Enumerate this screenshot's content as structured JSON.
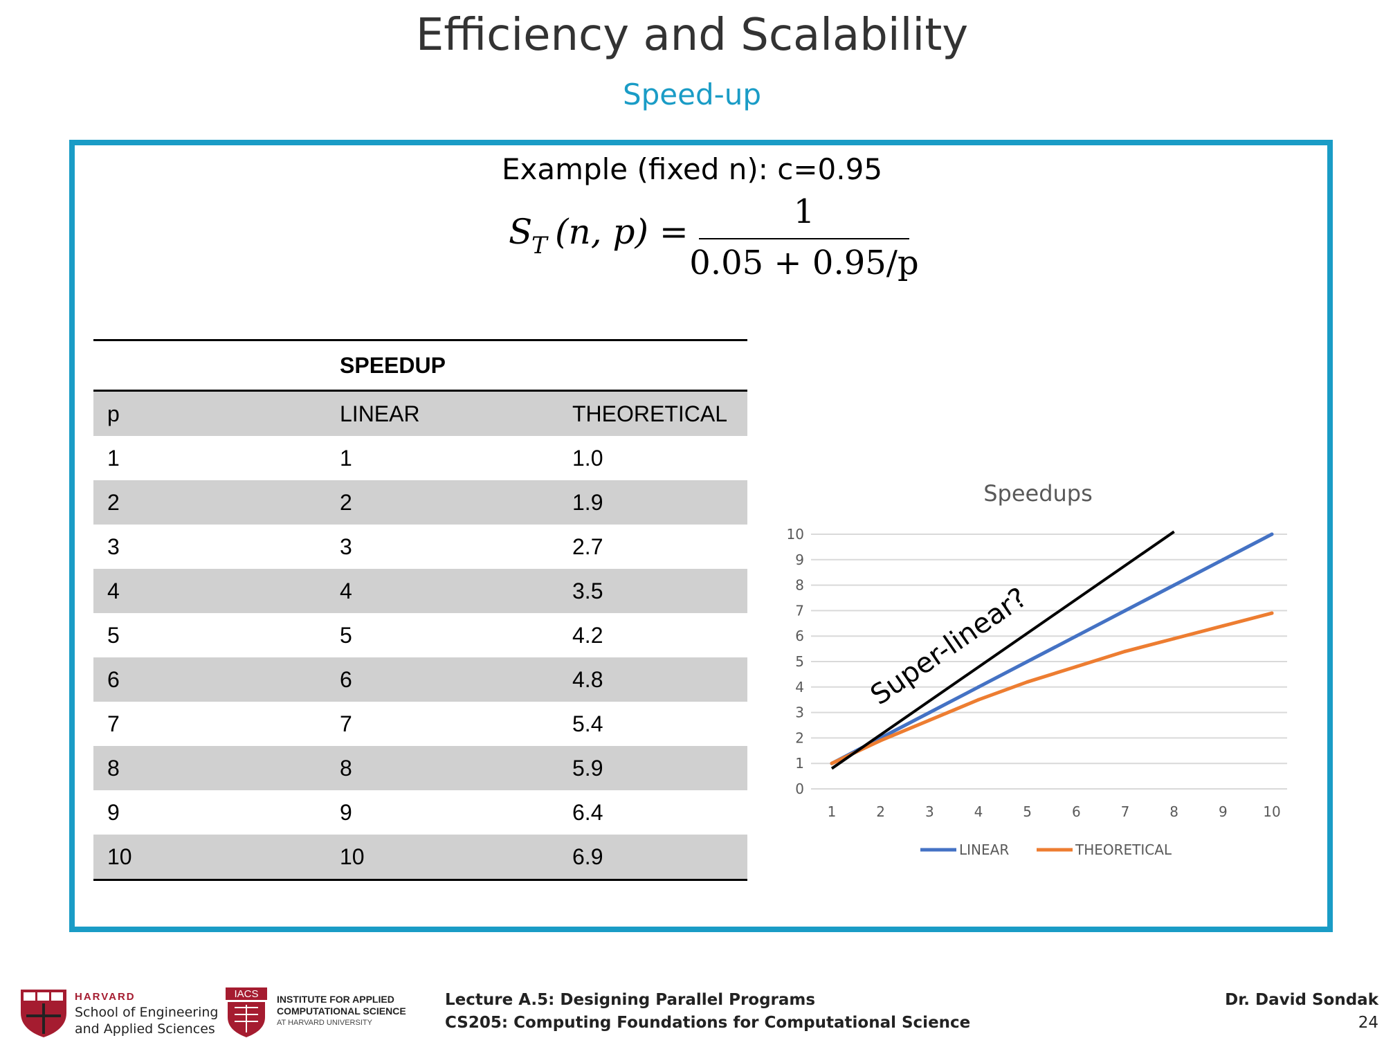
{
  "slide": {
    "title": "Efficiency and Scalability",
    "subtitle": "Speed-up",
    "example_label": "Example (fixed n): c=0.95",
    "formula": {
      "lhs": "S",
      "lhs_sub": "T",
      "lhs_args": "(n, p) =",
      "numerator": "1",
      "denominator": "0.05 + 0.95/p"
    }
  },
  "table": {
    "group_header": "SPEEDUP",
    "columns": [
      "p",
      "LINEAR",
      "THEORETICAL"
    ],
    "rows": [
      [
        "1",
        "1",
        "1.0"
      ],
      [
        "2",
        "2",
        "1.9"
      ],
      [
        "3",
        "3",
        "2.7"
      ],
      [
        "4",
        "4",
        "3.5"
      ],
      [
        "5",
        "5",
        "4.2"
      ],
      [
        "6",
        "6",
        "4.8"
      ],
      [
        "7",
        "7",
        "5.4"
      ],
      [
        "8",
        "8",
        "5.9"
      ],
      [
        "9",
        "9",
        "6.4"
      ],
      [
        "10",
        "10",
        "6.9"
      ]
    ]
  },
  "chart_data": {
    "type": "line",
    "title": "Speedups",
    "xlabel": "",
    "ylabel": "",
    "x": [
      1,
      2,
      3,
      4,
      5,
      6,
      7,
      8,
      9,
      10
    ],
    "ylim": [
      0,
      10
    ],
    "yticks": [
      0,
      1,
      2,
      3,
      4,
      5,
      6,
      7,
      8,
      9,
      10
    ],
    "grid": true,
    "legend_position": "bottom",
    "series": [
      {
        "name": "LINEAR",
        "color": "#4472c4",
        "values": [
          1,
          2,
          3,
          4,
          5,
          6,
          7,
          8,
          9,
          10
        ]
      },
      {
        "name": "THEORETICAL",
        "color": "#ed7d31",
        "values": [
          1.0,
          1.9,
          2.7,
          3.5,
          4.2,
          4.8,
          5.4,
          5.9,
          6.4,
          6.9
        ]
      }
    ],
    "annotation": {
      "text": "Super-linear?",
      "color": "#000000",
      "line_start": [
        1,
        0.8
      ],
      "line_end": [
        8,
        10.1
      ]
    }
  },
  "footer": {
    "harvard_word": "HARVARD",
    "seas_line1": "School of Engineering",
    "seas_line2": "and Applied Sciences",
    "iacs_badge": "IACS",
    "iacs_line1": "INSTITUTE FOR APPLIED",
    "iacs_line2": "COMPUTATIONAL SCIENCE",
    "iacs_line3": "AT HARVARD UNIVERSITY",
    "lecture": "Lecture A.5: Designing Parallel Programs",
    "course": "CS205: Computing Foundations for Computational Science",
    "author": "Dr. David Sondak",
    "page": "24"
  },
  "colors": {
    "accent": "#1a9cc6",
    "title": "#333333",
    "crimson": "#a51c30",
    "table_shade": "#d0d0d0"
  }
}
